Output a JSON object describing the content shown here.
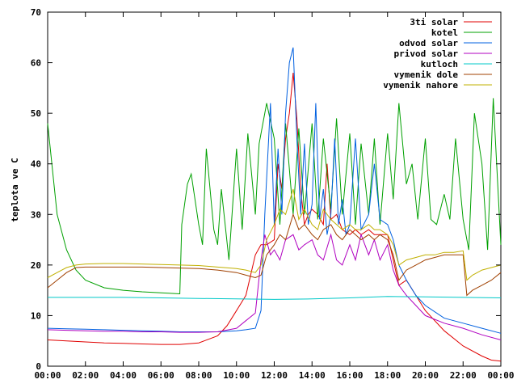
{
  "chart_data": {
    "type": "line",
    "title": "",
    "xlabel": "",
    "ylabel": "teplota ve C",
    "xlim": [
      0,
      24
    ],
    "ylim": [
      0,
      70
    ],
    "x_ticks": [
      "00:00",
      "02:00",
      "04:00",
      "06:00",
      "08:00",
      "10:00",
      "12:00",
      "14:00",
      "16:00",
      "18:00",
      "20:00",
      "22:00",
      "00:00"
    ],
    "y_ticks": [
      0,
      10,
      20,
      30,
      40,
      50,
      60,
      70
    ],
    "grid": false,
    "legend_position": "top-right",
    "series": [
      {
        "name": "3ti solar",
        "color": "#e00000",
        "x": [
          0,
          1,
          2,
          3,
          4,
          5,
          6,
          7,
          8,
          9,
          9.5,
          10,
          10.5,
          11,
          11.3,
          11.6,
          12,
          12.2,
          12.4,
          12.6,
          12.8,
          13,
          13.2,
          13.4,
          13.6,
          13.8,
          14,
          14.3,
          14.6,
          14.8,
          15,
          15.3,
          15.6,
          16,
          16.3,
          16.6,
          17,
          17.3,
          17.6,
          18,
          18.3,
          18.6,
          19,
          19.5,
          20,
          21,
          22,
          23,
          23.5,
          24
        ],
        "y": [
          5.2,
          5,
          4.8,
          4.6,
          4.5,
          4.4,
          4.3,
          4.3,
          4.6,
          6,
          8,
          11,
          14,
          22,
          24,
          24,
          25,
          40,
          35,
          45,
          50,
          58,
          49,
          35,
          28,
          30,
          31,
          30,
          28,
          40,
          29,
          30,
          27,
          26,
          27,
          26,
          27,
          26,
          26,
          26,
          21,
          16,
          17,
          14,
          11,
          7,
          4,
          2,
          1.2,
          1
        ]
      },
      {
        "name": "kotel",
        "color": "#00a000",
        "x": [
          0,
          0.5,
          1,
          1.5,
          2,
          3,
          4,
          5,
          6,
          7,
          7.1,
          7.4,
          7.6,
          8,
          8.2,
          8.4,
          8.8,
          9,
          9.2,
          9.6,
          10,
          10.3,
          10.6,
          11,
          11.2,
          11.6,
          12,
          12.3,
          12.6,
          13,
          13.3,
          13.6,
          14,
          14.3,
          14.6,
          15,
          15.3,
          15.6,
          16,
          16.3,
          16.6,
          17,
          17.3,
          17.6,
          18,
          18.3,
          18.6,
          19,
          19.3,
          19.6,
          20,
          20.3,
          20.6,
          21,
          21.3,
          21.6,
          22,
          22.3,
          22.6,
          23,
          23.3,
          23.6,
          24
        ],
        "y": [
          48,
          30,
          23,
          19,
          17,
          15.5,
          15,
          14.7,
          14.5,
          14.3,
          28,
          36,
          38,
          28,
          24,
          43,
          27,
          24,
          35,
          21,
          43,
          27,
          46,
          30,
          44,
          52,
          45,
          28,
          48,
          30,
          47,
          30,
          48,
          29,
          45,
          31,
          49,
          30,
          46,
          28,
          44,
          30,
          45,
          28,
          46,
          33,
          52,
          36,
          40,
          29,
          45,
          29,
          28,
          34,
          29,
          45,
          29,
          23,
          50,
          40,
          23,
          53,
          24
        ]
      },
      {
        "name": "odvod solar",
        "color": "#0060e0",
        "x": [
          0,
          1,
          2,
          3,
          4,
          5,
          6,
          7,
          8,
          9,
          10,
          10.5,
          11,
          11.3,
          11.5,
          11.8,
          12,
          12.2,
          12.4,
          12.6,
          12.8,
          13,
          13.2,
          13.4,
          13.6,
          13.8,
          14,
          14.2,
          14.4,
          14.6,
          14.8,
          15,
          15.2,
          15.4,
          15.6,
          15.8,
          16,
          16.3,
          16.6,
          17,
          17.3,
          17.6,
          18,
          18.3,
          18.6,
          19,
          19.5,
          20,
          21,
          22,
          23,
          24
        ],
        "y": [
          7.5,
          7.4,
          7.3,
          7.2,
          7.1,
          7.0,
          6.9,
          6.8,
          6.8,
          6.8,
          7,
          7.2,
          7.5,
          11,
          30,
          52,
          28,
          43,
          30,
          50,
          60,
          63,
          45,
          30,
          44,
          28,
          32,
          52,
          29,
          35,
          26,
          30,
          45,
          28,
          33,
          26,
          28,
          45,
          27,
          30,
          40,
          29,
          28,
          25,
          20,
          17,
          14,
          12,
          9.5,
          8.5,
          7.5,
          6.5
        ]
      },
      {
        "name": "privod solar",
        "color": "#b000c0",
        "x": [
          0,
          1,
          2,
          3,
          4,
          5,
          6,
          7,
          8,
          9,
          10,
          10.5,
          11,
          11.3,
          11.5,
          11.8,
          12,
          12.3,
          12.6,
          13,
          13.3,
          13.6,
          14,
          14.3,
          14.6,
          15,
          15.3,
          15.6,
          16,
          16.3,
          16.6,
          17,
          17.3,
          17.6,
          18,
          18.3,
          18.6,
          19,
          19.5,
          20,
          21,
          22,
          23,
          24
        ],
        "y": [
          7.2,
          7.1,
          7,
          6.9,
          6.9,
          6.8,
          6.8,
          6.7,
          6.7,
          6.8,
          7.5,
          9,
          10.5,
          21,
          26,
          22,
          23,
          21,
          25,
          26,
          23,
          24,
          25,
          22,
          21,
          26,
          21,
          20,
          24,
          21,
          26,
          22,
          25,
          21,
          24,
          19,
          16,
          14,
          12,
          10,
          8.5,
          7.5,
          6.2,
          5.2
        ]
      },
      {
        "name": "kutloch",
        "color": "#00c8c8",
        "x": [
          0,
          2,
          4,
          6,
          8,
          10,
          12,
          14,
          16,
          18,
          20,
          22,
          24
        ],
        "y": [
          13.6,
          13.6,
          13.6,
          13.5,
          13.4,
          13.3,
          13.2,
          13.3,
          13.5,
          13.8,
          13.7,
          13.6,
          13.5
        ]
      },
      {
        "name": "vymenik dole",
        "color": "#a04000",
        "x": [
          0,
          0.5,
          1,
          1.5,
          2,
          3,
          4,
          5,
          6,
          7,
          8,
          9,
          10,
          10.5,
          11,
          11.3,
          11.6,
          12,
          12.3,
          12.6,
          13,
          13.3,
          13.6,
          14,
          14.3,
          14.6,
          15,
          15.3,
          15.6,
          16,
          16.3,
          16.6,
          17,
          17.3,
          17.6,
          18,
          18.3,
          18.6,
          19,
          19.5,
          20,
          20.5,
          21,
          21.5,
          22,
          22.2,
          22.5,
          23,
          23.5,
          24
        ],
        "y": [
          15.5,
          17,
          18.5,
          19.5,
          19.6,
          19.6,
          19.6,
          19.6,
          19.5,
          19.4,
          19.3,
          19,
          18.5,
          18,
          17.5,
          18,
          22,
          24,
          26,
          25,
          30,
          27,
          28,
          26,
          25,
          27,
          28,
          26,
          25,
          27,
          26,
          25,
          26,
          25,
          26,
          25,
          22,
          17,
          19,
          20,
          21,
          21.5,
          22,
          22,
          22,
          14,
          15,
          16,
          17,
          18.5
        ]
      },
      {
        "name": "vymenik nahore",
        "color": "#c0b000",
        "x": [
          0,
          0.5,
          1,
          1.5,
          2,
          3,
          4,
          5,
          6,
          7,
          8,
          9,
          10,
          10.5,
          11,
          11.3,
          11.6,
          12,
          12.3,
          12.6,
          13,
          13.3,
          13.6,
          14,
          14.3,
          14.6,
          15,
          15.3,
          15.6,
          16,
          16.3,
          16.6,
          17,
          17.3,
          17.6,
          18,
          18.3,
          18.6,
          19,
          19.5,
          20,
          20.5,
          21,
          21.5,
          22,
          22.2,
          22.5,
          23,
          23.5,
          24
        ],
        "y": [
          17.5,
          18.5,
          19.5,
          20,
          20.2,
          20.3,
          20.3,
          20.2,
          20.1,
          20,
          19.9,
          19.6,
          19.3,
          19,
          18.5,
          20,
          25,
          28,
          31,
          30,
          35,
          29,
          31,
          28,
          27,
          31,
          29,
          28,
          27,
          28,
          27,
          27,
          28,
          27,
          27,
          26,
          24,
          20,
          21,
          21.5,
          22,
          22,
          22.5,
          22.5,
          22.8,
          17,
          18,
          19,
          19.5,
          20
        ]
      }
    ]
  }
}
